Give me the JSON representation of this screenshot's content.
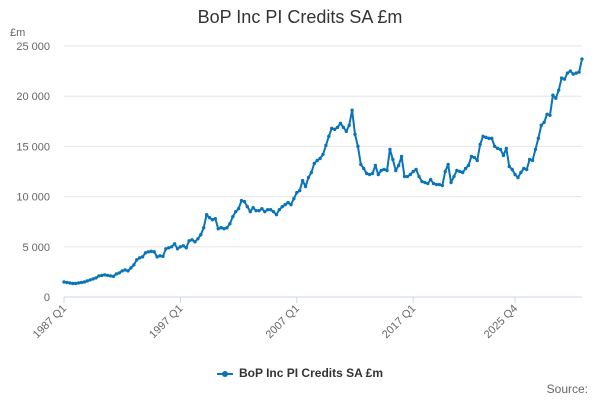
{
  "chart_data": {
    "type": "line",
    "title": "BoP Inc PI Credits SA £m",
    "unit_label": "£m",
    "ylim": [
      0,
      25000
    ],
    "y_ticks": [
      {
        "value": 0,
        "label": "0"
      },
      {
        "value": 5000,
        "label": "5 000"
      },
      {
        "value": 10000,
        "label": "10 000"
      },
      {
        "value": 15000,
        "label": "15 000"
      },
      {
        "value": 20000,
        "label": "20 000"
      },
      {
        "value": 25000,
        "label": "25 000"
      }
    ],
    "x_ticks": [
      "1987 Q1",
      "1997 Q1",
      "2007 Q1",
      "2017 Q1",
      "2025 Q4"
    ],
    "x_start": "1987 Q1",
    "grid": true,
    "legend_position": "bottom",
    "color": "#0a74b8",
    "series": [
      {
        "name": "BoP Inc PI Credits SA £m",
        "values": [
          1500,
          1450,
          1400,
          1350,
          1350,
          1400,
          1450,
          1500,
          1600,
          1700,
          1800,
          1900,
          2100,
          2150,
          2200,
          2150,
          2100,
          2050,
          2300,
          2400,
          2600,
          2700,
          2600,
          2900,
          3200,
          3700,
          3900,
          4000,
          4400,
          4500,
          4550,
          4500,
          4000,
          4100,
          4050,
          4800,
          4900,
          5000,
          5300,
          4800,
          5000,
          5100,
          4900,
          5600,
          5700,
          5500,
          5800,
          6200,
          6900,
          8200,
          7900,
          7700,
          7800,
          6800,
          6900,
          6800,
          6900,
          7300,
          8000,
          8500,
          8800,
          9600,
          9500,
          9000,
          8500,
          8900,
          8600,
          8600,
          8800,
          8500,
          8700,
          8700,
          8500,
          8200,
          8700,
          9000,
          9200,
          9400,
          9200,
          9800,
          10400,
          10600,
          11600,
          11000,
          11900,
          12400,
          13300,
          13600,
          13800,
          14200,
          15100,
          16000,
          16800,
          16700,
          16900,
          17300,
          16900,
          16500,
          17100,
          18600,
          16200,
          15000,
          13200,
          12800,
          12300,
          12200,
          12300,
          13100,
          12200,
          12600,
          12700,
          12600,
          14700,
          13700,
          12600,
          13100,
          14000,
          12000,
          12000,
          12200,
          12500,
          12700,
          12000,
          11500,
          11400,
          11300,
          11700,
          11300,
          11200,
          11200,
          11100,
          12500,
          13200,
          11400,
          12000,
          12600,
          12500,
          12400,
          12800,
          13100,
          14000,
          13900,
          13600,
          15200,
          16000,
          15900,
          15800,
          15800,
          15000,
          14800,
          14700,
          14100,
          14800,
          13000,
          12700,
          12200,
          11900,
          12400,
          12800,
          12700,
          13700,
          13600,
          14700,
          15800,
          17100,
          17400,
          18200,
          18100,
          20100,
          19800,
          20600,
          21800,
          21700,
          22300,
          22500,
          22200,
          22300,
          22400,
          23700
        ]
      }
    ],
    "source_label": "Source:"
  }
}
